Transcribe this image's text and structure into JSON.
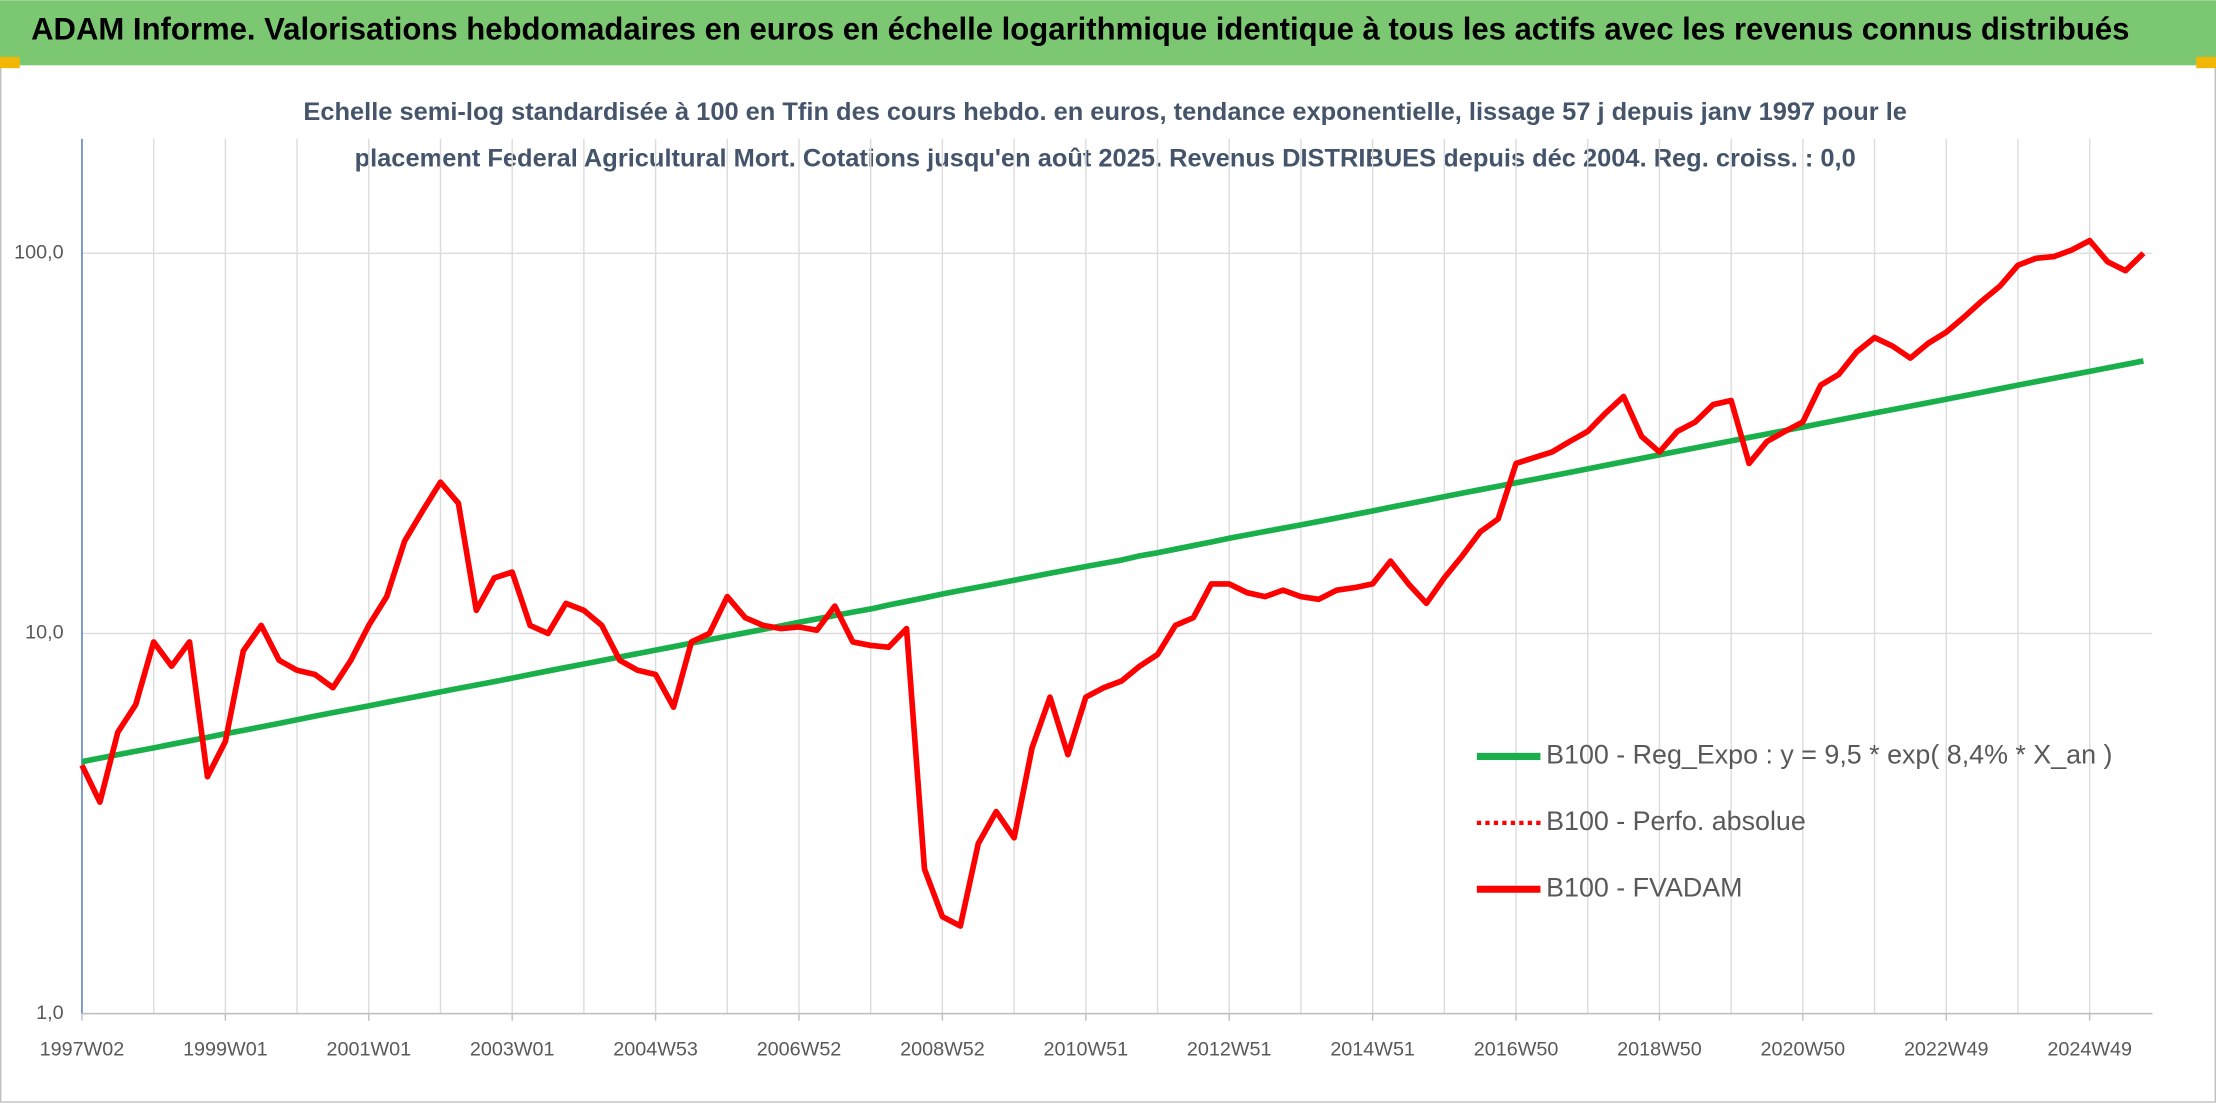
{
  "header": {
    "title": "ADAM Informe. Valorisations hebdomadaires en euros en échelle logarithmique identique à tous les actifs avec les revenus connus distribués"
  },
  "chart_data": {
    "type": "line",
    "subtitle": [
      "Echelle semi-log standardisée à 100 en Tfin des cours hebdo. en euros, tendance exponentielle, lissage 57 j depuis janv 1997 pour le",
      "placement Federal Agricultural Mort. Cotations jusqu'en août 2025. Revenus DISTRIBUES depuis déc 2004. Reg. croiss. : 0,0"
    ],
    "categories": [
      "1997W02",
      null,
      null,
      null,
      null,
      null,
      null,
      null,
      "1999W01",
      null,
      null,
      null,
      null,
      null,
      null,
      null,
      "2001W01",
      null,
      null,
      null,
      null,
      null,
      null,
      null,
      "2003W01",
      null,
      null,
      null,
      null,
      null,
      null,
      null,
      "2004W53",
      null,
      null,
      null,
      null,
      null,
      null,
      null,
      "2006W52",
      null,
      null,
      null,
      null,
      null,
      null,
      null,
      "2008W52",
      null,
      null,
      null,
      null,
      null,
      null,
      null,
      "2010W51",
      null,
      null,
      null,
      null,
      null,
      null,
      null,
      "2012W51",
      null,
      null,
      null,
      null,
      null,
      null,
      null,
      "2014W51",
      null,
      null,
      null,
      null,
      null,
      null,
      null,
      "2016W50",
      null,
      null,
      null,
      null,
      null,
      null,
      null,
      "2018W50",
      null,
      null,
      null,
      null,
      null,
      null,
      null,
      "2020W50",
      null,
      null,
      null,
      null,
      null,
      null,
      null,
      "2022W49",
      null,
      null,
      null,
      null,
      null,
      null,
      null,
      "2024W49",
      null,
      null,
      null
    ],
    "log_scale": true,
    "grid": true,
    "legend": "right",
    "ylim": [
      1,
      200
    ],
    "yticks": [
      {
        "value": 1,
        "label": "1,0"
      },
      {
        "value": 10,
        "label": "10,0"
      },
      {
        "value": 100,
        "label": "100,0"
      }
    ],
    "series": [
      {
        "name": "B100 - Reg_Expo : y = 9,5 * exp( 8,4% *  X_an )",
        "color": "#19b04b",
        "style": "solid",
        "values": [
          4.6,
          4.7,
          4.8,
          4.9,
          5.0,
          5.11,
          5.22,
          5.33,
          5.45,
          5.56,
          5.68,
          5.8,
          5.93,
          6.06,
          6.19,
          6.32,
          6.45,
          6.59,
          6.73,
          6.87,
          7.02,
          7.17,
          7.32,
          7.47,
          7.63,
          7.8,
          7.97,
          8.14,
          8.31,
          8.49,
          8.67,
          8.85,
          9.04,
          9.23,
          9.43,
          9.63,
          9.83,
          10.04,
          10.25,
          10.47,
          10.7,
          10.92,
          11.15,
          11.38,
          11.6,
          11.88,
          12.14,
          12.41,
          12.7,
          12.97,
          13.24,
          13.51,
          13.8,
          14.1,
          14.4,
          14.7,
          15.0,
          15.3,
          15.6,
          16.0,
          16.3,
          16.66,
          17.03,
          17.4,
          17.8,
          18.17,
          18.54,
          18.92,
          19.3,
          19.71,
          20.13,
          20.56,
          21.0,
          21.47,
          21.94,
          22.41,
          22.9,
          23.39,
          23.89,
          24.39,
          24.9,
          25.43,
          25.97,
          26.53,
          27.1,
          27.69,
          28.28,
          28.88,
          29.5,
          30.13,
          30.77,
          31.43,
          32.1,
          32.78,
          33.47,
          34.18,
          34.9,
          35.66,
          36.43,
          37.21,
          38.0,
          38.8,
          39.62,
          40.45,
          41.3,
          42.19,
          43.1,
          44.04,
          45.0,
          45.95,
          46.92,
          47.9,
          48.9,
          49.95,
          51.0,
          52.1
        ]
      },
      {
        "name": "B100 - Perfo. absolue",
        "color": "#ff0000",
        "style": "dotted",
        "values": [
          4.5,
          3.6,
          5.5,
          6.5,
          9.5,
          8.2,
          9.5,
          4.2,
          5.2,
          9.0,
          10.5,
          8.5,
          8.0,
          7.8,
          7.2,
          8.5,
          10.5,
          12.5,
          17.5,
          21,
          25,
          22,
          11.5,
          14,
          14.5,
          10.5,
          10,
          12,
          11.5,
          10.5,
          8.5,
          8.0,
          7.8,
          6.4,
          9.5,
          10,
          12.5,
          11,
          10.5,
          10.3,
          10.4,
          10.2,
          11.8,
          9.5,
          9.3,
          9.2,
          10.3,
          2.4,
          1.8,
          1.7,
          2.8,
          3.4,
          2.9,
          5.0,
          6.8,
          4.8,
          6.8,
          7.2,
          7.5,
          8.2,
          8.8,
          10.5,
          11.0,
          13.5,
          13.5,
          12.8,
          12.5,
          13.0,
          12.5,
          12.3,
          13.0,
          13.2,
          13.5,
          15.5,
          13.5,
          12.0,
          14.0,
          16.0,
          18.5,
          20,
          28,
          29,
          30,
          32,
          34,
          38,
          42,
          33,
          30,
          34,
          36,
          40,
          41,
          28,
          32,
          34,
          36,
          45,
          48,
          55,
          60,
          57,
          53,
          58,
          62,
          68,
          75,
          82,
          93,
          97,
          98,
          102,
          108,
          95,
          90,
          100
        ]
      },
      {
        "name": "B100 - FVADAM",
        "color": "#ff0000",
        "style": "solid",
        "values": [
          4.5,
          3.6,
          5.5,
          6.5,
          9.5,
          8.2,
          9.5,
          4.2,
          5.2,
          9.0,
          10.5,
          8.5,
          8.0,
          7.8,
          7.2,
          8.5,
          10.5,
          12.5,
          17.5,
          21,
          25,
          22,
          11.5,
          14,
          14.5,
          10.5,
          10,
          12,
          11.5,
          10.5,
          8.5,
          8.0,
          7.8,
          6.4,
          9.5,
          10,
          12.5,
          11,
          10.5,
          10.3,
          10.4,
          10.2,
          11.8,
          9.5,
          9.3,
          9.2,
          10.3,
          2.4,
          1.8,
          1.7,
          2.8,
          3.4,
          2.9,
          5.0,
          6.8,
          4.8,
          6.8,
          7.2,
          7.5,
          8.2,
          8.8,
          10.5,
          11.0,
          13.5,
          13.5,
          12.8,
          12.5,
          13.0,
          12.5,
          12.3,
          13.0,
          13.2,
          13.5,
          15.5,
          13.5,
          12.0,
          14.0,
          16.0,
          18.5,
          20,
          28,
          29,
          30,
          32,
          34,
          38,
          42,
          33,
          30,
          34,
          36,
          40,
          41,
          28,
          32,
          34,
          36,
          45,
          48,
          55,
          60,
          57,
          53,
          58,
          62,
          68,
          75,
          82,
          93,
          97,
          98,
          102,
          108,
          95,
          90,
          100
        ]
      }
    ]
  }
}
